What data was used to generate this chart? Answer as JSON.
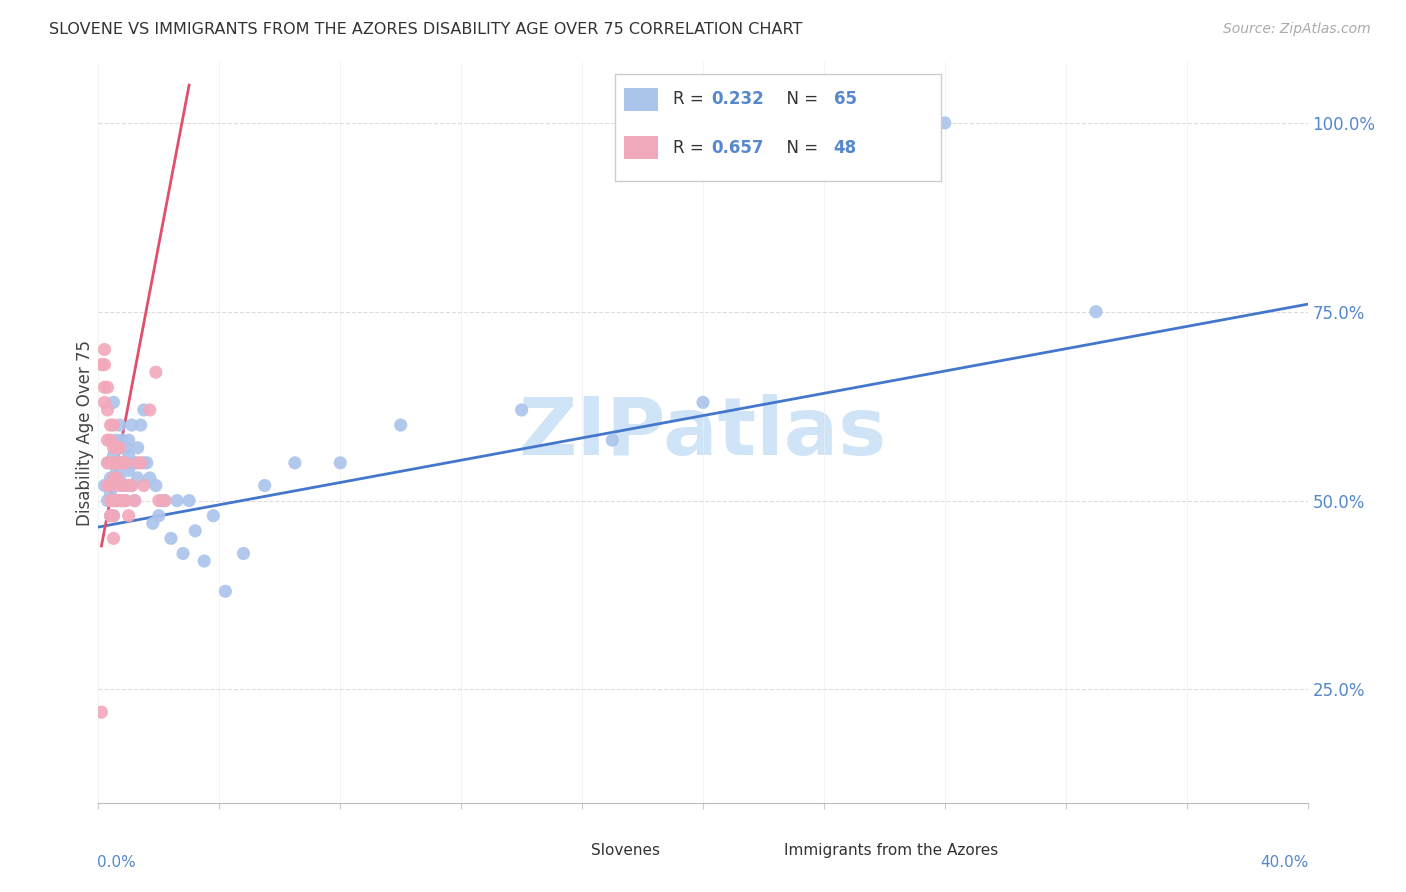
{
  "title": "SLOVENE VS IMMIGRANTS FROM THE AZORES DISABILITY AGE OVER 75 CORRELATION CHART",
  "source": "Source: ZipAtlas.com",
  "ylabel": "Disability Age Over 75",
  "ytick_labels": [
    "25.0%",
    "50.0%",
    "75.0%",
    "100.0%"
  ],
  "ytick_values": [
    0.25,
    0.5,
    0.75,
    1.0
  ],
  "xlim": [
    0.0,
    0.4
  ],
  "ylim": [
    0.1,
    1.08
  ],
  "label_slovenes": "Slovenes",
  "label_immigrants": "Immigrants from the Azores",
  "blue_color": "#aac4ec",
  "pink_color": "#f2a8bb",
  "blue_line_color": "#4477cc",
  "pink_line_color": "#e0506a",
  "watermark_color": "#d0e4f8",
  "blue_r": "0.232",
  "blue_n": "65",
  "pink_r": "0.657",
  "pink_n": "48",
  "blue_dots_x": [
    0.002,
    0.003,
    0.003,
    0.004,
    0.004,
    0.004,
    0.005,
    0.005,
    0.005,
    0.005,
    0.005,
    0.006,
    0.006,
    0.006,
    0.007,
    0.007,
    0.007,
    0.008,
    0.008,
    0.008,
    0.008,
    0.009,
    0.009,
    0.009,
    0.009,
    0.01,
    0.01,
    0.01,
    0.01,
    0.011,
    0.011,
    0.011,
    0.012,
    0.012,
    0.013,
    0.013,
    0.014,
    0.015,
    0.015,
    0.016,
    0.017,
    0.018,
    0.019,
    0.02,
    0.021,
    0.022,
    0.024,
    0.026,
    0.028,
    0.03,
    0.032,
    0.035,
    0.038,
    0.042,
    0.048,
    0.055,
    0.065,
    0.08,
    0.1,
    0.14,
    0.17,
    0.2,
    0.24,
    0.28,
    0.33
  ],
  "blue_dots_y": [
    0.52,
    0.55,
    0.5,
    0.53,
    0.48,
    0.51,
    0.56,
    0.53,
    0.5,
    0.48,
    0.63,
    0.58,
    0.54,
    0.5,
    0.6,
    0.57,
    0.53,
    0.58,
    0.55,
    0.52,
    0.5,
    0.57,
    0.55,
    0.52,
    0.5,
    0.58,
    0.56,
    0.54,
    0.52,
    0.6,
    0.55,
    0.52,
    0.55,
    0.5,
    0.57,
    0.53,
    0.6,
    0.62,
    0.55,
    0.55,
    0.53,
    0.47,
    0.52,
    0.48,
    0.5,
    0.5,
    0.45,
    0.5,
    0.43,
    0.5,
    0.46,
    0.42,
    0.48,
    0.38,
    0.43,
    0.52,
    0.55,
    0.55,
    0.6,
    0.62,
    0.58,
    0.63,
    1.0,
    1.0,
    0.75
  ],
  "pink_dots_x": [
    0.001,
    0.002,
    0.002,
    0.002,
    0.003,
    0.003,
    0.003,
    0.003,
    0.003,
    0.004,
    0.004,
    0.004,
    0.004,
    0.004,
    0.004,
    0.005,
    0.005,
    0.005,
    0.005,
    0.005,
    0.005,
    0.005,
    0.006,
    0.006,
    0.006,
    0.006,
    0.007,
    0.007,
    0.007,
    0.007,
    0.008,
    0.008,
    0.008,
    0.009,
    0.009,
    0.01,
    0.01,
    0.011,
    0.012,
    0.013,
    0.014,
    0.015,
    0.017,
    0.019,
    0.02,
    0.022,
    0.002,
    0.001
  ],
  "pink_dots_y": [
    0.68,
    0.68,
    0.65,
    0.63,
    0.65,
    0.62,
    0.58,
    0.55,
    0.52,
    0.6,
    0.58,
    0.55,
    0.52,
    0.5,
    0.48,
    0.6,
    0.57,
    0.55,
    0.53,
    0.5,
    0.48,
    0.45,
    0.57,
    0.55,
    0.53,
    0.5,
    0.57,
    0.55,
    0.52,
    0.5,
    0.55,
    0.52,
    0.5,
    0.55,
    0.5,
    0.52,
    0.48,
    0.52,
    0.5,
    0.55,
    0.55,
    0.52,
    0.62,
    0.67,
    0.5,
    0.5,
    0.7,
    0.22
  ],
  "pink_trendline_x": [
    0.001,
    0.03
  ],
  "pink_trendline_y": [
    0.44,
    1.05
  ],
  "blue_trendline_x": [
    0.0,
    0.4
  ],
  "blue_trendline_y": [
    0.465,
    0.76
  ]
}
